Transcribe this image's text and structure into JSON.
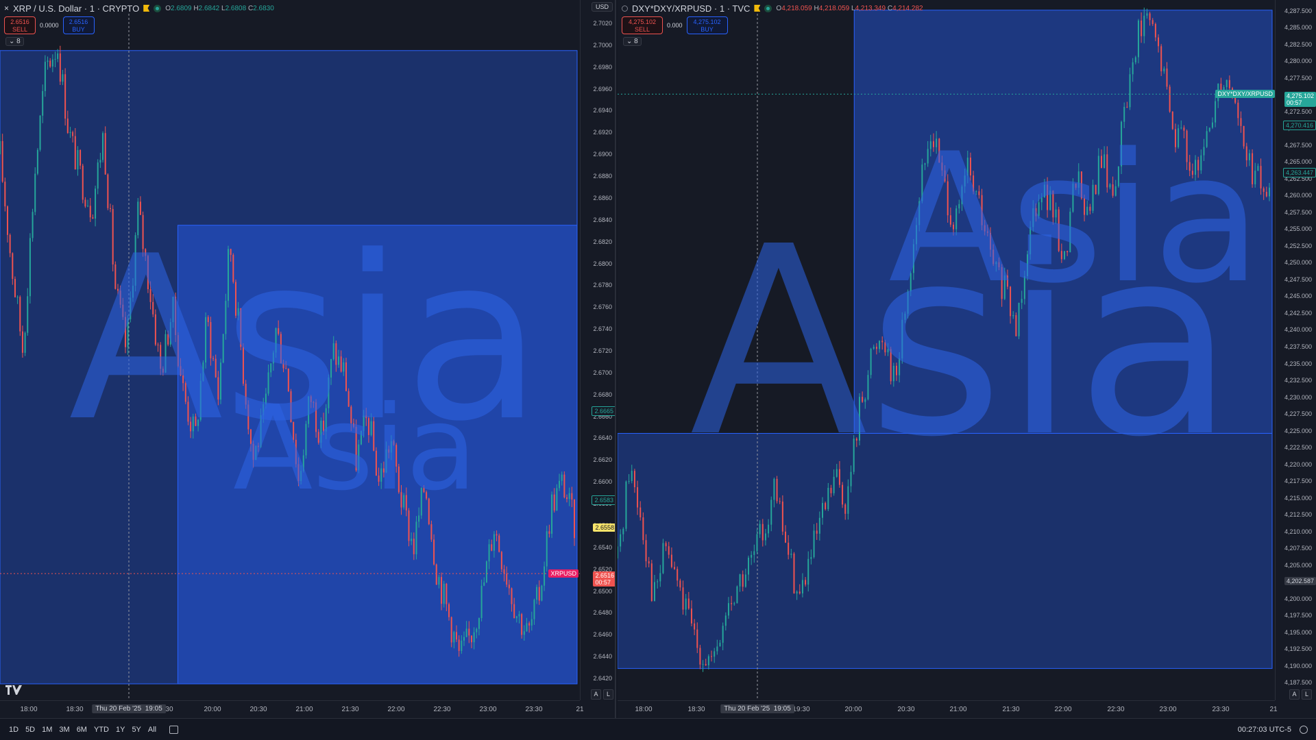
{
  "left_chart": {
    "close_icon": "×",
    "title": "XRP / U.S. Dollar · 1 · CRYPTO",
    "ohlc": {
      "o_label": "O",
      "o": "2.6809",
      "h_label": "H",
      "h": "2.6842",
      "l_label": "L",
      "l": "2.6808",
      "c_label": "C",
      "c": "2.6830"
    },
    "sell_price": "2.6516",
    "sell_label": "SELL",
    "spread": "0.0000",
    "buy_price": "2.6516",
    "buy_label": "BUY",
    "indicator_count": "8",
    "currency": "USD",
    "watermark_label": "Asia",
    "price_ticks": [
      "2.7020",
      "2.7000",
      "2.6980",
      "2.6960",
      "2.6940",
      "2.6920",
      "2.6900",
      "2.6880",
      "2.6860",
      "2.6840",
      "2.6820",
      "2.6800",
      "2.6780",
      "2.6760",
      "2.6740",
      "2.6720",
      "2.6700",
      "2.6680",
      "2.6660",
      "2.6640",
      "2.6620",
      "2.6600",
      "2.6580",
      "2.6560",
      "2.6540",
      "2.6520",
      "2.6500",
      "2.6480",
      "2.6460",
      "2.6440",
      "2.6420"
    ],
    "time_ticks": [
      "18:00",
      "18:30",
      "19:30",
      "20:00",
      "20:30",
      "21:00",
      "21:30",
      "22:00",
      "22:30",
      "23:00",
      "23:30",
      "21"
    ],
    "crosshair_date": "Thu 20 Feb '25",
    "crosshair_time": "19:05",
    "tag_green": "2.6665",
    "tag_green2": "2.6583",
    "tag_yellow": "2.6558",
    "symbol_tag": "XRPUSD",
    "last_price": "2.6516",
    "countdown": "00:57",
    "auto_btn": "A",
    "log_btn": "L",
    "chart_data": {
      "type": "candlestick",
      "series": [
        {
          "name": "XRPUSD"
        }
      ],
      "price_range": [
        2.641,
        2.703
      ],
      "time_range": [
        "17:45",
        "00:00"
      ],
      "last_price": 2.6516,
      "sessions": [
        {
          "label": "Asia",
          "from": "17:45",
          "to": "00:00",
          "high": 2.6995,
          "low": 2.6415
        },
        {
          "label": "Asia",
          "from": "19:40",
          "to": "00:00",
          "high": 2.6835,
          "low": 2.6415
        }
      ],
      "path": [
        2.69,
        2.68,
        2.672,
        2.688,
        2.698,
        2.7,
        2.692,
        2.688,
        2.685,
        2.692,
        2.678,
        2.672,
        2.685,
        2.678,
        2.67,
        2.676,
        2.668,
        2.664,
        2.675,
        2.668,
        2.682,
        2.672,
        2.662,
        2.666,
        2.674,
        2.67,
        2.66,
        2.668,
        2.664,
        2.672,
        2.67,
        2.662,
        2.666,
        2.66,
        2.664,
        2.658,
        2.654,
        2.66,
        2.652,
        2.648,
        2.644,
        2.646,
        2.65,
        2.656,
        2.652,
        2.648,
        2.646,
        2.65,
        2.658,
        2.66,
        2.656
      ]
    }
  },
  "right_chart": {
    "title": "DXY*DXY/XRPUSD · 1 · TVC",
    "ohlc": {
      "o_label": "O",
      "o": "4,218.059",
      "h_label": "H",
      "h": "4,218.059",
      "l_label": "L",
      "l": "4,213.349",
      "c_label": "C",
      "c": "4,214.282"
    },
    "sell_price": "4,275.102",
    "sell_label": "SELL",
    "spread": "0.000",
    "buy_price": "4,275.102",
    "buy_label": "BUY",
    "indicator_count": "8",
    "watermark_label": "Asia",
    "price_ticks": [
      "4,287.500",
      "4,285.000",
      "4,282.500",
      "4,280.000",
      "4,277.500",
      "4,275.000",
      "4,272.500",
      "4,270.000",
      "4,267.500",
      "4,265.000",
      "4,262.500",
      "4,260.000",
      "4,257.500",
      "4,255.000",
      "4,252.500",
      "4,250.000",
      "4,247.500",
      "4,245.000",
      "4,242.500",
      "4,240.000",
      "4,237.500",
      "4,235.000",
      "4,232.500",
      "4,230.000",
      "4,227.500",
      "4,225.000",
      "4,222.500",
      "4,220.000",
      "4,217.500",
      "4,215.000",
      "4,212.500",
      "4,210.000",
      "4,207.500",
      "4,205.000",
      "4,202.500",
      "4,200.000",
      "4,197.500",
      "4,195.000",
      "4,192.500",
      "4,190.000",
      "4,187.500"
    ],
    "time_ticks": [
      "18:00",
      "18:30",
      "19:30",
      "20:00",
      "20:30",
      "21:00",
      "21:30",
      "22:00",
      "22:30",
      "23:00",
      "23:30",
      "21"
    ],
    "crosshair_date": "Thu 20 Feb '25",
    "crosshair_time": "19:05",
    "symbol_tag": "DXY*DXY/XRPUSD",
    "last_price": "4,275.102",
    "countdown": "00:57",
    "tag_green": "4,270.416",
    "tag_green2": "4,263.447",
    "crosshair_price": "4,202.587",
    "auto_btn": "A",
    "log_btn": "L",
    "chart_data": {
      "type": "candlestick",
      "series": [
        {
          "name": "DXY*DXY/XRPUSD"
        }
      ],
      "price_range": [
        4186.5,
        4288.5
      ],
      "time_range": [
        "17:45",
        "00:00"
      ],
      "last_price": 4275.102,
      "sessions": [
        {
          "label": "Asia",
          "from": "17:45",
          "to": "00:00",
          "high": 4224.6,
          "low": 4189.6
        },
        {
          "label": "Asia",
          "from": "20:00",
          "to": "00:00",
          "high": 4287.6,
          "low": 4224.6
        }
      ],
      "path": [
        4206,
        4220,
        4212,
        4200,
        4208,
        4202,
        4196,
        4192,
        4190,
        4198,
        4202,
        4205,
        4210,
        4216,
        4208,
        4200,
        4206,
        4212,
        4218,
        4214,
        4228,
        4236,
        4240,
        4232,
        4246,
        4260,
        4270,
        4262,
        4255,
        4264,
        4258,
        4250,
        4246,
        4240,
        4254,
        4262,
        4258,
        4250,
        4264,
        4256,
        4266,
        4260,
        4272,
        4284,
        4286,
        4280,
        4270,
        4268,
        4262,
        4270,
        4278,
        4276,
        4266,
        4262,
        4260
      ]
    }
  },
  "bottom": {
    "ranges": [
      "1D",
      "5D",
      "1M",
      "3M",
      "6M",
      "YTD",
      "1Y",
      "5Y",
      "All"
    ],
    "clock": "00:27:03 UTC-5"
  }
}
